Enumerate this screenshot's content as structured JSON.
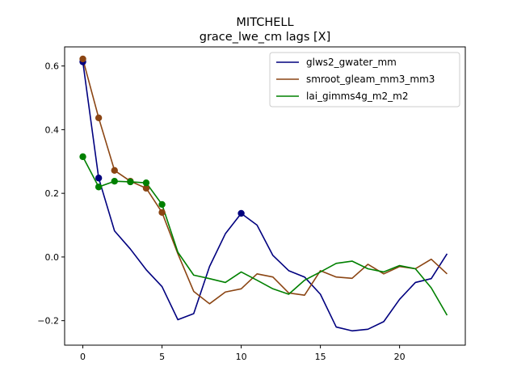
{
  "chart_data": {
    "type": "line",
    "title": "MITCHELL",
    "subtitle": "grace_lwe_cm lags [X]",
    "xlabel": "",
    "ylabel": "",
    "xlim": [
      -1.15,
      24.15
    ],
    "ylim": [
      -0.277,
      0.66
    ],
    "xticks": [
      0,
      5,
      10,
      15,
      20
    ],
    "yticks": [
      -0.2,
      0.0,
      0.2,
      0.4,
      0.6
    ],
    "xtick_labels": [
      "0",
      "5",
      "10",
      "15",
      "20"
    ],
    "ytick_labels": [
      "−0.2",
      "0.0",
      "0.2",
      "0.4",
      "0.6"
    ],
    "legend_position": "top-right",
    "grid": false,
    "series": [
      {
        "name": "glws2_gwater_mm",
        "color": "#00007f",
        "x": [
          0,
          1,
          2,
          3,
          4,
          5,
          6,
          7,
          8,
          9,
          10,
          11,
          12,
          13,
          14,
          15,
          16,
          17,
          18,
          19,
          20,
          21,
          22,
          23
        ],
        "y": [
          0.613,
          0.248,
          0.082,
          0.025,
          -0.04,
          -0.093,
          -0.197,
          -0.178,
          -0.03,
          0.073,
          0.137,
          0.1,
          0.005,
          -0.043,
          -0.063,
          -0.117,
          -0.22,
          -0.232,
          -0.227,
          -0.203,
          -0.133,
          -0.08,
          -0.068,
          0.01
        ],
        "marker_x": [
          0,
          1,
          10
        ]
      },
      {
        "name": "smroot_gleam_mm3_mm3",
        "color": "#8b4513",
        "x": [
          0,
          1,
          2,
          3,
          4,
          5,
          6,
          7,
          8,
          9,
          10,
          11,
          12,
          13,
          14,
          15,
          16,
          17,
          18,
          19,
          20,
          21,
          22,
          23
        ],
        "y": [
          0.622,
          0.437,
          0.272,
          0.238,
          0.216,
          0.14,
          0.01,
          -0.108,
          -0.147,
          -0.11,
          -0.1,
          -0.053,
          -0.063,
          -0.113,
          -0.12,
          -0.043,
          -0.063,
          -0.067,
          -0.023,
          -0.053,
          -0.03,
          -0.037,
          -0.007,
          -0.053
        ],
        "marker_x": [
          0,
          1,
          2,
          3,
          4,
          5
        ]
      },
      {
        "name": "lai_gimms4g_m2_m2",
        "color": "#008000",
        "x": [
          0,
          1,
          2,
          3,
          4,
          5,
          6,
          7,
          8,
          9,
          10,
          11,
          12,
          13,
          14,
          15,
          16,
          17,
          18,
          19,
          20,
          21,
          22,
          23
        ],
        "y": [
          0.315,
          0.22,
          0.238,
          0.236,
          0.233,
          0.165,
          0.015,
          -0.057,
          -0.068,
          -0.08,
          -0.047,
          -0.073,
          -0.1,
          -0.117,
          -0.073,
          -0.047,
          -0.02,
          -0.013,
          -0.037,
          -0.047,
          -0.027,
          -0.037,
          -0.097,
          -0.183
        ],
        "marker_x": [
          0,
          1,
          2,
          3,
          4,
          5
        ]
      }
    ]
  }
}
